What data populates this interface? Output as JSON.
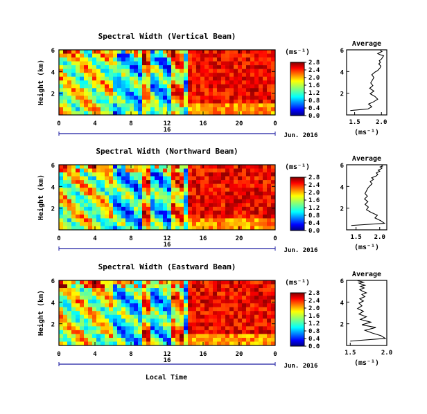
{
  "figure": {
    "footer_label": "Local Time"
  },
  "chart_data": [
    {
      "type": "heatmap",
      "title": "Spectral Width (Vertical Beam)",
      "xlabel": "",
      "ylabel": "Height (km)",
      "x_ticks": [
        "0",
        "4",
        "8",
        "12",
        "16",
        "20",
        "0"
      ],
      "y_ticks": [
        "2",
        "4",
        "6"
      ],
      "date_marker": "16",
      "date_label": "Jun. 2016",
      "colorbar_unit": "(ms⁻¹)",
      "colorbar_ticks": [
        "0.0",
        "0.4",
        "0.8",
        "1.2",
        "1.6",
        "2.0",
        "2.4",
        "2.8"
      ],
      "xlim": [
        0,
        24
      ],
      "ylim": [
        0,
        6
      ],
      "average_profile": {
        "title": "Average",
        "xlabel": "(ms⁻¹)",
        "x_ticks": [
          "1.5",
          "2.0"
        ],
        "y_ticks": [
          "2",
          "4",
          "6"
        ],
        "xlim": [
          1.35,
          2.1
        ],
        "ylim": [
          0,
          6
        ],
        "x": [
          1.42,
          1.75,
          1.82,
          1.76,
          1.85,
          1.93,
          1.88,
          1.79,
          1.86,
          1.78,
          1.84,
          1.8,
          1.83,
          1.86,
          1.82,
          1.88,
          1.93,
          1.97,
          1.99,
          1.95,
          1.98,
          1.96,
          2.0,
          2.02,
          2.04,
          1.98,
          1.93,
          1.97,
          2.01,
          1.98
        ],
        "y": [
          0.4,
          0.55,
          0.75,
          1.0,
          1.2,
          1.45,
          1.7,
          1.95,
          2.2,
          2.45,
          2.7,
          2.95,
          3.2,
          3.45,
          3.7,
          3.95,
          4.1,
          4.3,
          4.5,
          4.7,
          4.85,
          5.0,
          5.15,
          5.3,
          5.45,
          5.55,
          5.65,
          5.75,
          5.85,
          5.95
        ]
      }
    },
    {
      "type": "heatmap",
      "title": "Spectral Width (Northward Beam)",
      "xlabel": "",
      "ylabel": "Height (km)",
      "x_ticks": [
        "0",
        "4",
        "8",
        "12",
        "16",
        "20",
        "0"
      ],
      "y_ticks": [
        "2",
        "4",
        "6"
      ],
      "date_marker": "16",
      "date_label": "Jun. 2016",
      "colorbar_unit": "(ms⁻¹)",
      "colorbar_ticks": [
        "0.0",
        "0.4",
        "0.8",
        "1.2",
        "1.6",
        "2.0",
        "2.4",
        "2.8"
      ],
      "xlim": [
        0,
        24
      ],
      "ylim": [
        0,
        6
      ],
      "average_profile": {
        "title": "Average",
        "xlabel": "(ms⁻¹)",
        "x_ticks": [
          "1.5",
          "2.0"
        ],
        "y_ticks": [
          "2",
          "4",
          "6"
        ],
        "xlim": [
          1.3,
          2.15
        ],
        "ylim": [
          0,
          6
        ],
        "x": [
          1.4,
          2.1,
          2.02,
          1.9,
          1.95,
          1.82,
          1.72,
          1.76,
          1.69,
          1.75,
          1.68,
          1.74,
          1.69,
          1.72,
          1.75,
          1.79,
          1.84,
          1.8,
          1.87,
          1.83,
          1.92,
          1.96,
          1.93,
          2.0,
          1.97,
          2.02,
          2.05,
          2.01,
          2.06,
          2.04
        ],
        "y": [
          0.4,
          0.6,
          0.85,
          1.1,
          1.35,
          1.6,
          1.85,
          2.1,
          2.35,
          2.6,
          2.85,
          3.1,
          3.35,
          3.6,
          3.85,
          4.05,
          4.25,
          4.45,
          4.65,
          4.8,
          4.95,
          5.1,
          5.25,
          5.4,
          5.5,
          5.6,
          5.7,
          5.8,
          5.88,
          5.95
        ]
      }
    },
    {
      "type": "heatmap",
      "title": "Spectral Width (Eastward Beam)",
      "xlabel": "",
      "ylabel": "Height (km)",
      "x_ticks": [
        "0",
        "4",
        "8",
        "12",
        "16",
        "20",
        "0"
      ],
      "y_ticks": [
        "2",
        "4",
        "6"
      ],
      "date_marker": "16",
      "date_label": "Jun. 2016",
      "colorbar_unit": "(ms⁻¹)",
      "colorbar_ticks": [
        "0.0",
        "0.4",
        "0.8",
        "1.2",
        "1.6",
        "2.0",
        "2.4",
        "2.8"
      ],
      "xlim": [
        0,
        24
      ],
      "ylim": [
        0,
        6
      ],
      "average_profile": {
        "title": "Average",
        "xlabel": "(ms⁻¹)",
        "x_ticks": [
          "1.5",
          "2.0"
        ],
        "y_ticks": [
          "2",
          "4",
          "6"
        ],
        "xlim": [
          1.45,
          2.0
        ],
        "ylim": [
          0,
          6
        ],
        "x": [
          1.5,
          1.98,
          1.92,
          1.8,
          1.7,
          1.85,
          1.66,
          1.78,
          1.64,
          1.72,
          1.62,
          1.68,
          1.6,
          1.66,
          1.62,
          1.68,
          1.63,
          1.7,
          1.66,
          1.72,
          1.67,
          1.63,
          1.69,
          1.64,
          1.7,
          1.66,
          1.62,
          1.68,
          1.65,
          1.6
        ],
        "y": [
          0.4,
          0.65,
          0.9,
          1.15,
          1.4,
          1.65,
          1.9,
          2.15,
          2.4,
          2.65,
          2.9,
          3.15,
          3.4,
          3.65,
          3.9,
          4.1,
          4.3,
          4.5,
          4.7,
          4.85,
          5.0,
          5.15,
          5.3,
          5.45,
          5.55,
          5.65,
          5.75,
          5.82,
          5.9,
          5.97
        ]
      }
    }
  ]
}
